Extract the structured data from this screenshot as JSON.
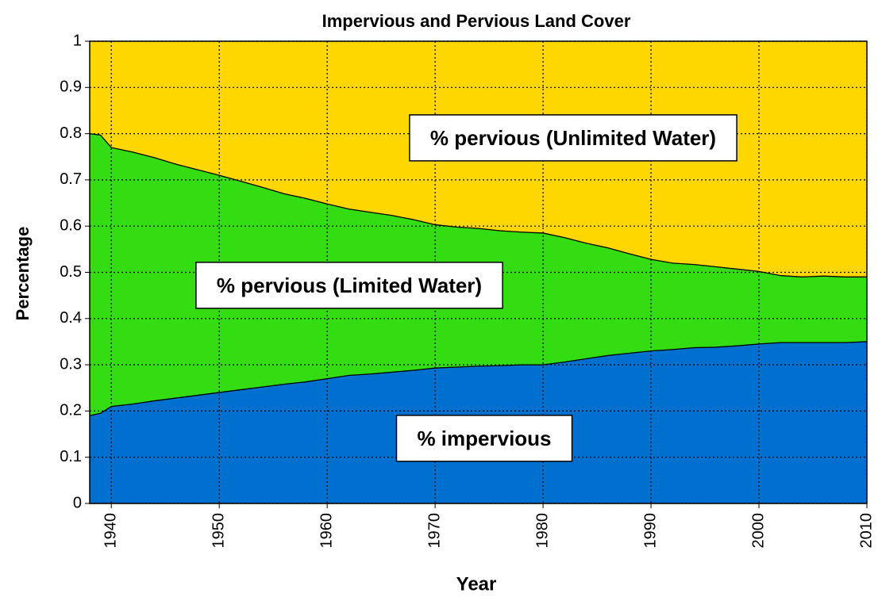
{
  "chart_data": {
    "type": "stacked_area",
    "title": "Impervious and Pervious Land Cover",
    "x_label": "Year",
    "y_label": "Percentage",
    "x": [
      1938,
      1939,
      1940,
      1942,
      1944,
      1946,
      1948,
      1950,
      1952,
      1954,
      1956,
      1958,
      1960,
      1962,
      1964,
      1966,
      1968,
      1970,
      1972,
      1974,
      1976,
      1978,
      1980,
      1982,
      1984,
      1986,
      1988,
      1990,
      1992,
      1994,
      1996,
      1998,
      2000,
      2002,
      2004,
      2006,
      2008,
      2010
    ],
    "series": [
      {
        "name": "% impervious",
        "color": "#0070d0",
        "values": [
          0.19,
          0.195,
          0.21,
          0.215,
          0.222,
          0.228,
          0.234,
          0.24,
          0.246,
          0.252,
          0.258,
          0.263,
          0.27,
          0.277,
          0.28,
          0.284,
          0.288,
          0.293,
          0.295,
          0.297,
          0.298,
          0.3,
          0.3,
          0.306,
          0.313,
          0.32,
          0.325,
          0.33,
          0.333,
          0.337,
          0.338,
          0.341,
          0.345,
          0.348,
          0.348,
          0.348,
          0.348,
          0.35
        ]
      },
      {
        "name": "% pervious (Limited Water)",
        "color": "#33dd11",
        "values": [
          0.61,
          0.602,
          0.56,
          0.545,
          0.526,
          0.506,
          0.488,
          0.47,
          0.451,
          0.432,
          0.412,
          0.397,
          0.378,
          0.36,
          0.35,
          0.339,
          0.326,
          0.31,
          0.303,
          0.298,
          0.292,
          0.287,
          0.285,
          0.269,
          0.25,
          0.233,
          0.215,
          0.198,
          0.187,
          0.18,
          0.174,
          0.166,
          0.157,
          0.145,
          0.142,
          0.144,
          0.142,
          0.14
        ]
      },
      {
        "name": "% pervious (Unlimited Water)",
        "color": "#ffd700",
        "values": [
          0.2,
          0.203,
          0.23,
          0.24,
          0.252,
          0.266,
          0.278,
          0.29,
          0.303,
          0.316,
          0.33,
          0.34,
          0.352,
          0.363,
          0.37,
          0.377,
          0.386,
          0.397,
          0.402,
          0.405,
          0.41,
          0.413,
          0.415,
          0.425,
          0.437,
          0.447,
          0.46,
          0.472,
          0.48,
          0.483,
          0.488,
          0.493,
          0.498,
          0.507,
          0.51,
          0.508,
          0.51,
          0.51
        ]
      }
    ],
    "xlim": [
      1938,
      2010
    ],
    "xticks": [
      1940,
      1950,
      1960,
      1970,
      1980,
      1990,
      2000,
      2010
    ],
    "ylim": [
      0,
      1
    ],
    "yticks": [
      0,
      0.1,
      0.2,
      0.3,
      0.4,
      0.5,
      0.6,
      0.7,
      0.8,
      0.9,
      1
    ],
    "grid": true
  }
}
